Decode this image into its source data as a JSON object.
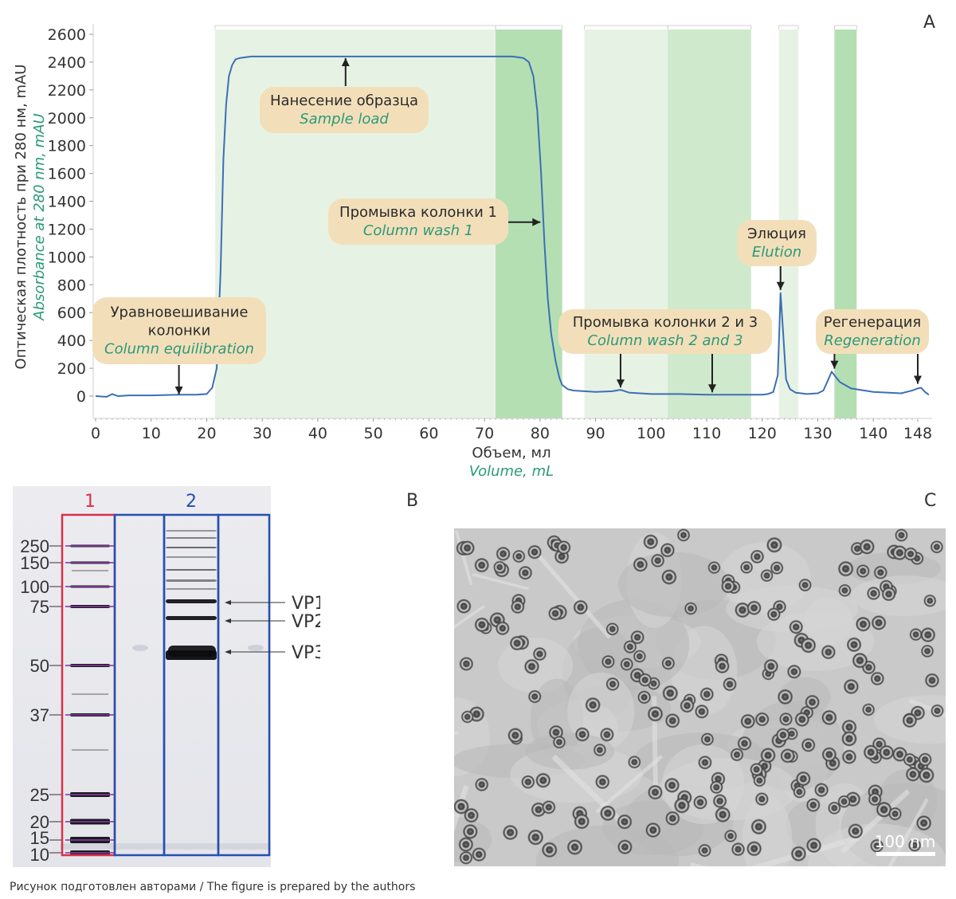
{
  "panels": {
    "a": "A",
    "b": "B",
    "c": "C"
  },
  "caption": "Рисунок подготовлен авторами / The figure is prepared by the authors",
  "colors": {
    "line": "#3d6fb4",
    "band_light": "#e6f3e4",
    "band_mid": "#cfe9cc",
    "band_dark": "#b4dfb3",
    "label_box": "#f2dfba",
    "label_ru": "#2b2b2b",
    "label_en": "#2a9a7a",
    "ladder_box": "#d9304a",
    "sample_box": "#2550b0",
    "ladder_marks": "#8a3a9e"
  },
  "chart_data": {
    "type": "line",
    "ylabel_ru": "Оптическая плотность при 280 нм, mAU",
    "ylabel_en": "Absorbance at 280 nm, mAU",
    "xlabel_ru": "Объем, мл",
    "xlabel_en": "Volume, mL",
    "xlim": [
      0,
      150
    ],
    "ylim": [
      -150,
      2650
    ],
    "x_ticks": [
      0,
      10,
      20,
      30,
      40,
      50,
      60,
      70,
      80,
      90,
      100,
      110,
      120,
      130,
      140,
      148
    ],
    "y_ticks": [
      0,
      200,
      400,
      600,
      800,
      1000,
      1200,
      1400,
      1600,
      1800,
      2000,
      2200,
      2400,
      2600
    ],
    "bands": [
      {
        "x0": 21.5,
        "x1": 72,
        "shade": "band_light"
      },
      {
        "x0": 72,
        "x1": 84,
        "shade": "band_dark"
      },
      {
        "x0": 88,
        "x1": 103,
        "shade": "band_light"
      },
      {
        "x0": 103,
        "x1": 118,
        "shade": "band_mid"
      },
      {
        "x0": 123,
        "x1": 126.5,
        "shade": "band_light"
      },
      {
        "x0": 133,
        "x1": 137,
        "shade": "band_dark"
      }
    ],
    "series": [
      {
        "x": [
          0,
          2,
          3,
          4,
          6,
          10,
          15,
          18,
          20,
          21,
          21.8,
          22.5,
          23,
          23.5,
          24,
          24.6,
          25.2,
          26,
          28,
          30,
          40,
          50,
          60,
          70,
          75,
          77,
          78,
          78.8,
          79.5,
          80.2,
          80.8,
          81.4,
          82,
          82.8,
          83.5,
          84,
          85,
          86,
          88,
          90,
          93,
          94.5,
          96,
          98,
          100,
          105,
          110,
          115,
          118,
          120,
          121,
          122,
          122.8,
          123.3,
          123.8,
          124.3,
          125,
          126,
          128,
          130,
          131,
          131.8,
          132.5,
          133.2,
          134,
          136,
          140,
          145,
          147,
          148,
          148.6,
          149.3,
          150
        ],
        "y": [
          0,
          -5,
          15,
          0,
          5,
          5,
          10,
          10,
          15,
          60,
          200,
          900,
          1700,
          2100,
          2300,
          2380,
          2420,
          2430,
          2440,
          2440,
          2440,
          2440,
          2440,
          2440,
          2440,
          2430,
          2400,
          2300,
          2050,
          1600,
          1100,
          700,
          450,
          250,
          130,
          80,
          50,
          40,
          35,
          30,
          35,
          45,
          25,
          20,
          15,
          15,
          10,
          10,
          10,
          10,
          15,
          30,
          150,
          740,
          430,
          120,
          50,
          25,
          15,
          20,
          40,
          110,
          175,
          140,
          100,
          55,
          30,
          20,
          40,
          55,
          60,
          30,
          10
        ]
      }
    ],
    "annotations": [
      {
        "ru": "Нанесение образца",
        "en": "Sample load"
      },
      {
        "ru": "Промывка колонки 1",
        "en": "Column wash 1"
      },
      {
        "ru": "Уравновешивание колонки",
        "ru_lines": [
          "Уравновешивание",
          "колонки"
        ],
        "en": "Column equilibration"
      },
      {
        "ru": "Элюция",
        "en": "Elution"
      },
      {
        "ru": "Промывка колонки 2 и 3",
        "en": "Column wash 2 and 3"
      },
      {
        "ru": "Регенерация",
        "en": "Regeneration"
      }
    ],
    "arrows_at": [
      {
        "x": 15,
        "y": 0
      },
      {
        "x": 45,
        "y": 2440
      },
      {
        "x": 80.5,
        "y": 1250
      },
      {
        "x": 94.5,
        "y": 45
      },
      {
        "x": 111,
        "y": 10
      },
      {
        "x": 123.3,
        "y": 740
      },
      {
        "x": 133,
        "y": 180
      },
      {
        "x": 148,
        "y": 60
      }
    ]
  },
  "gel": {
    "lane_labels": [
      "1",
      "2"
    ],
    "marker_labels": [
      "250",
      "150",
      "100",
      "75",
      "50",
      "37",
      "25",
      "20",
      "15",
      "10"
    ],
    "marker_kda": [
      250,
      150,
      100,
      75,
      50,
      37,
      25,
      20,
      15,
      10
    ],
    "band_labels": [
      "VP1",
      "VP2",
      "VP3"
    ]
  },
  "tem": {
    "scale_label": "100 nm",
    "particle_count": 220
  }
}
